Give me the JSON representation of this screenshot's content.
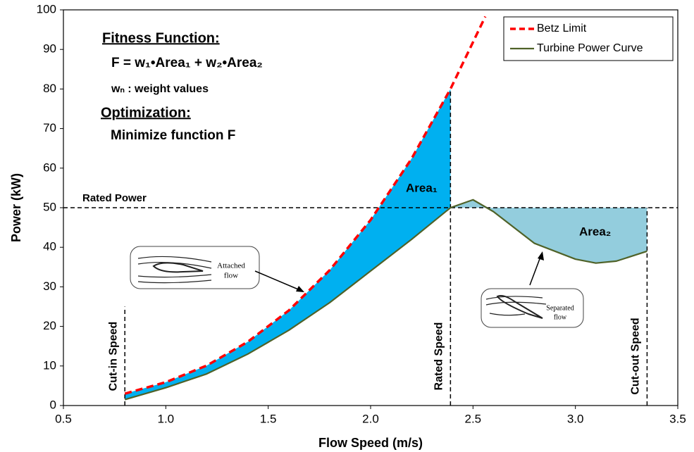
{
  "chart_data": {
    "type": "line",
    "x_label": "Flow Speed  (m/s)",
    "y_label": "Power (kW)",
    "xlim": [
      0.5,
      3.5
    ],
    "ylim": [
      0,
      100
    ],
    "xticks": [
      0.5,
      {
        "value": 1,
        "label": "1.0"
      },
      1.5,
      {
        "value": 2,
        "label": "2.0"
      },
      2.5,
      {
        "value": 3,
        "label": "3.0"
      },
      3.5
    ],
    "yticks": [
      0,
      10,
      20,
      30,
      40,
      50,
      60,
      70,
      80,
      90,
      100
    ],
    "legend_position": "upper right",
    "series": [
      {
        "name": "Betz Limit",
        "color": "#ff0000",
        "dashed": true,
        "x": [
          0.8,
          1.0,
          1.2,
          1.4,
          1.6,
          1.8,
          2.0,
          2.2,
          2.39,
          2.56
        ],
        "values": [
          3.0,
          5.9,
          10.1,
          16.1,
          24.0,
          34.2,
          46.9,
          62.4,
          80.0,
          98.3
        ]
      },
      {
        "name": "Turbine Power Curve",
        "color": "#4f6228",
        "dashed": false,
        "x": [
          0.8,
          1.0,
          1.2,
          1.4,
          1.6,
          1.8,
          2.0,
          2.2,
          2.39,
          2.5,
          2.6,
          2.8,
          3.0,
          3.1,
          3.2,
          3.35
        ],
        "values": [
          1.5,
          4.5,
          8.0,
          13.0,
          19.0,
          26.0,
          34.0,
          42.0,
          50.0,
          52.0,
          49.0,
          41.0,
          37.0,
          36.0,
          36.5,
          39.0
        ]
      }
    ],
    "reference_lines": [
      {
        "label": "Rated Power",
        "y": 50
      },
      {
        "label": "Cut-in Speed",
        "x": 0.8,
        "y_end": 25
      },
      {
        "label": "Rated Speed",
        "x": 2.39,
        "y_end": 80
      },
      {
        "label": "Cut-out Speed",
        "x": 3.35,
        "y_end": 50
      }
    ],
    "area_labels": [
      "Area₁",
      "Area₂"
    ],
    "annotations": {
      "fitness_title": "Fitness Function:",
      "fitness_formula": "F = w₁•Area₁ + w₂•Area₂",
      "weights": "wₙ : weight values",
      "optimization_title": "Optimization:",
      "optimization_text": "Minimize function F",
      "attached_flow": [
        "Attached",
        "flow"
      ],
      "separated_flow": [
        "Separated",
        "flow"
      ]
    }
  }
}
